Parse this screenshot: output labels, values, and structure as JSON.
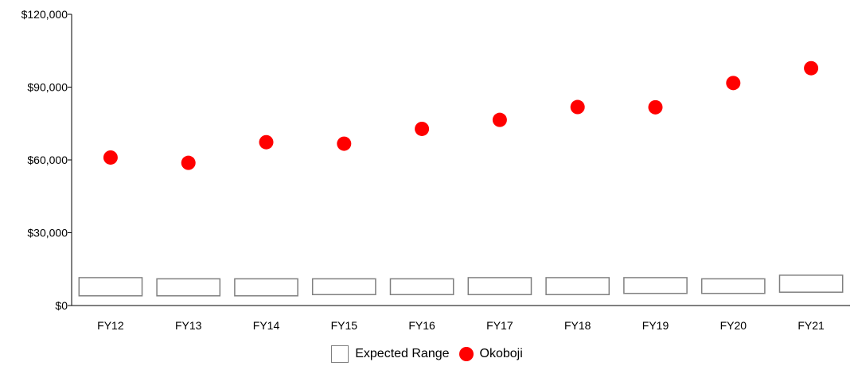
{
  "chart_data": {
    "type": "scatter",
    "categories": [
      "FY12",
      "FY13",
      "FY14",
      "FY15",
      "FY16",
      "FY17",
      "FY18",
      "FY19",
      "FY20",
      "FY21"
    ],
    "ylim": [
      0,
      120000
    ],
    "yticks": [
      0,
      30000,
      60000,
      90000,
      120000
    ],
    "ytick_labels": [
      "$0",
      "$30,000",
      "$60,000",
      "$90,000",
      "$120,000"
    ],
    "grid": false,
    "legend_position": "bottom-center",
    "series": [
      {
        "name": "Expected Range",
        "kind": "range",
        "color": "#808080",
        "low": [
          4000,
          4000,
          4000,
          4500,
          4500,
          4500,
          4500,
          5000,
          5000,
          5500
        ],
        "high": [
          11500,
          11000,
          11000,
          11000,
          11000,
          11500,
          11500,
          11500,
          11000,
          12500
        ]
      },
      {
        "name": "Okoboji",
        "kind": "point",
        "color": "#ff0000",
        "values": [
          61000,
          58800,
          67300,
          66700,
          72800,
          76500,
          81800,
          81700,
          91700,
          97800
        ]
      }
    ]
  }
}
